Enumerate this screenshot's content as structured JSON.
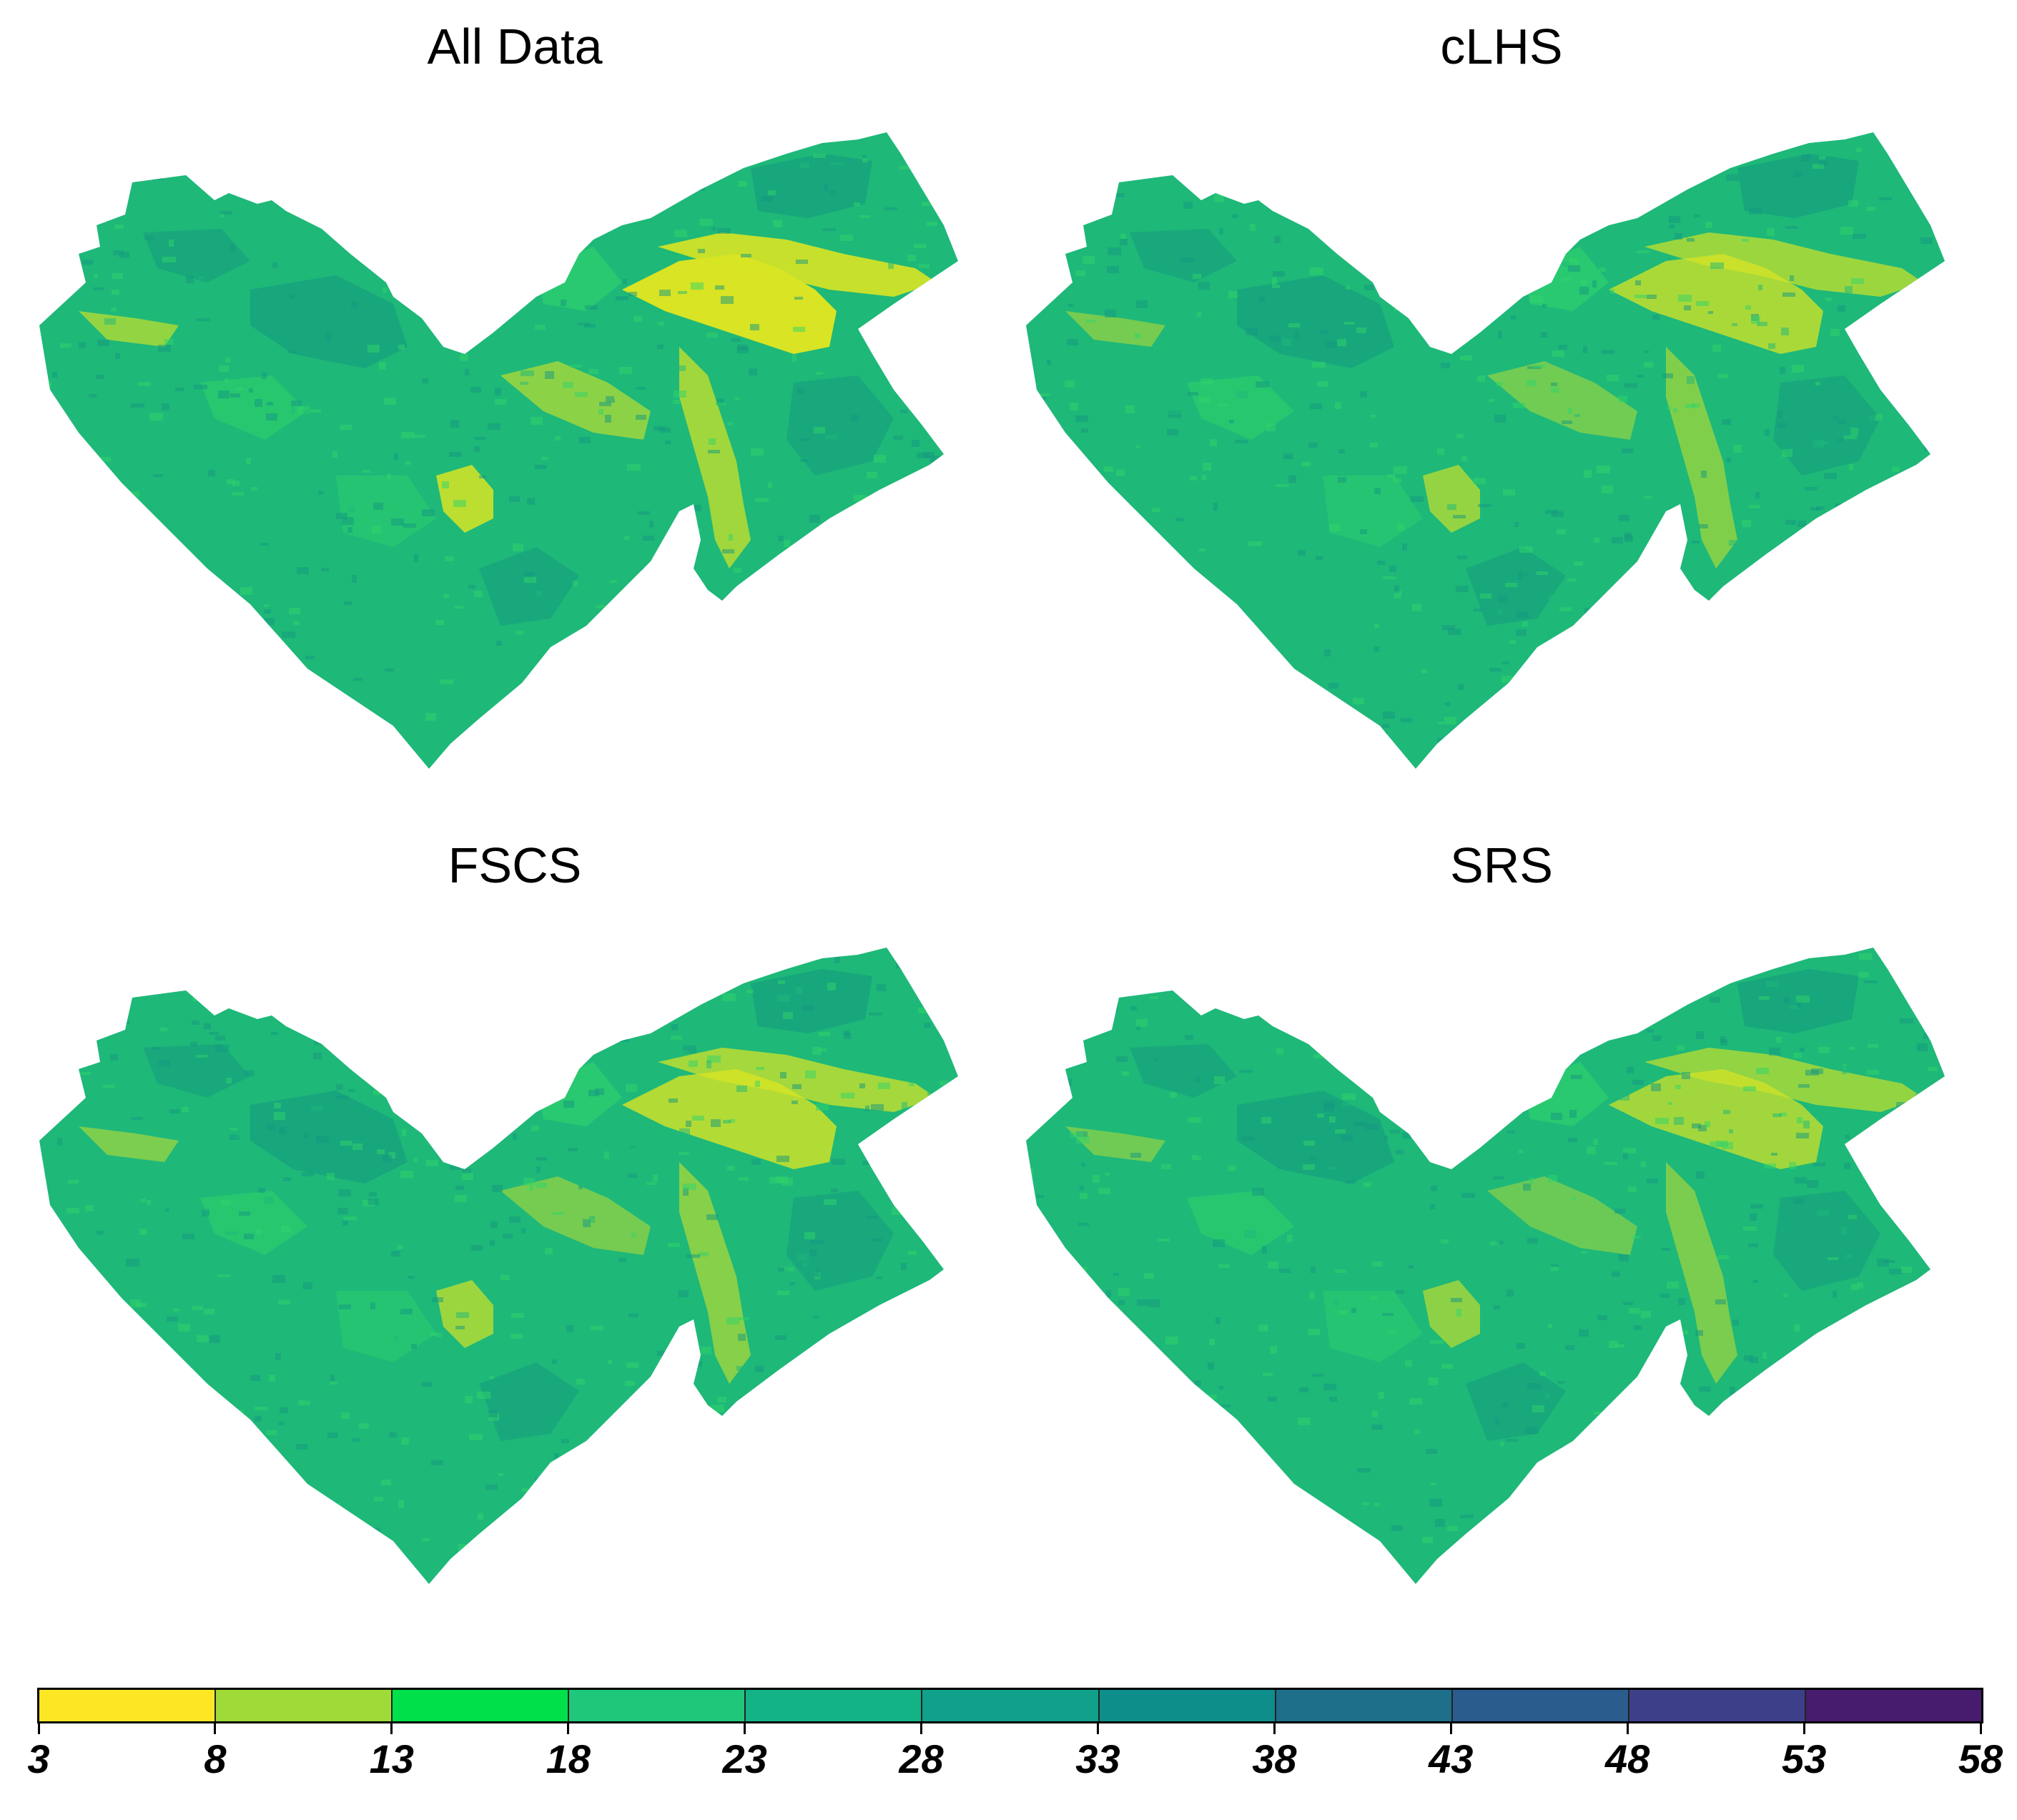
{
  "panels": [
    {
      "title": "All Data"
    },
    {
      "title": "cLHS"
    },
    {
      "title": "FSCS"
    },
    {
      "title": "SRS"
    }
  ],
  "legend": {
    "breaks": [
      "3",
      "8",
      "13",
      "18",
      "23",
      "28",
      "33",
      "38",
      "43",
      "48",
      "53",
      "58"
    ],
    "colors": [
      "#FDE725",
      "#A0DA39",
      "#00E04A",
      "#1FC77A",
      "#13B386",
      "#11A08A",
      "#0E8E8A",
      "#1E6F8A",
      "#2A5C8E",
      "#3E3F89",
      "#471C6F",
      "#440154"
    ]
  },
  "map_colors": {
    "base": "#1EB879",
    "dark": "#14987F",
    "light": "#2FD36A",
    "yellow": "#D8E424",
    "lime": "#A8D83A"
  }
}
